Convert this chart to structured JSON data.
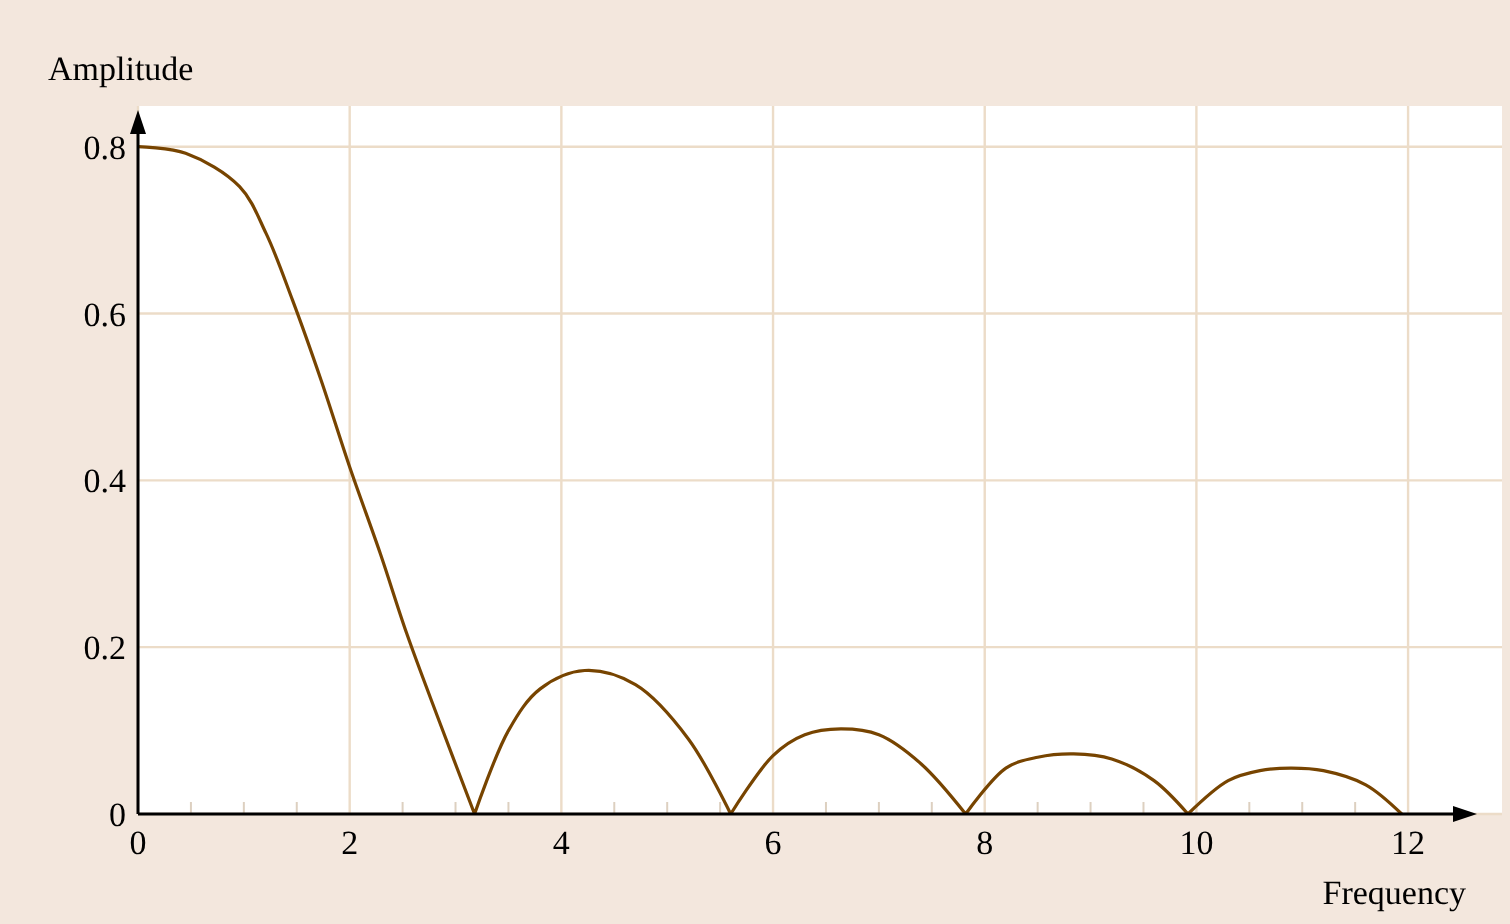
{
  "chart_data": {
    "type": "line",
    "xlabel": "Frequency",
    "ylabel": "Amplitude",
    "x": [
      0,
      0.45,
      0.96,
      1.21,
      1.46,
      1.73,
      2.0,
      2.29,
      2.54,
      2.85,
      3.18,
      3.5,
      3.8,
      4.22,
      4.7,
      5.2,
      5.6,
      6.0,
      6.3,
      6.64,
      7.0,
      7.4,
      7.82,
      8.2,
      8.5,
      8.84,
      9.2,
      9.6,
      9.92,
      10.3,
      10.6,
      10.89,
      11.2,
      11.6,
      11.94
    ],
    "series": [
      {
        "color": "#774400",
        "values": [
          0.8,
          0.792,
          0.752,
          0.696,
          0.616,
          0.52,
          0.416,
          0.312,
          0.216,
          0.11,
          0,
          0.1,
          0.15,
          0.172,
          0.155,
          0.09,
          0,
          0.07,
          0.095,
          0.102,
          0.095,
          0.06,
          0,
          0.055,
          0.068,
          0.072,
          0.066,
          0.04,
          0,
          0.04,
          0.052,
          0.055,
          0.052,
          0.035,
          0
        ]
      }
    ],
    "xlim": [
      0,
      12.5
    ],
    "ylim": [
      0,
      0.82
    ],
    "xticks": [
      0,
      {
        "value": 0.5,
        "label": null
      },
      {
        "value": 1,
        "label": null
      },
      {
        "value": 1.5,
        "label": null
      },
      2,
      {
        "value": 2.5,
        "label": null
      },
      {
        "value": 3,
        "label": null
      },
      {
        "value": 3.5,
        "label": null
      },
      4,
      {
        "value": 4.5,
        "label": null
      },
      {
        "value": 5,
        "label": null
      },
      {
        "value": 5.5,
        "label": null
      },
      6,
      {
        "value": 6.5,
        "label": null
      },
      {
        "value": 7,
        "label": null
      },
      {
        "value": 7.5,
        "label": null
      },
      8,
      {
        "value": 8.5,
        "label": null
      },
      {
        "value": 9,
        "label": null
      },
      {
        "value": 9.5,
        "label": null
      },
      10,
      {
        "value": 10.5,
        "label": null
      },
      {
        "value": 11,
        "label": null
      },
      {
        "value": 11.5,
        "label": null
      },
      12
    ],
    "yticks": [
      0,
      0.2,
      0.4,
      0.6,
      0.8
    ],
    "grid": true,
    "marker": "none",
    "line_style": "solid"
  }
}
